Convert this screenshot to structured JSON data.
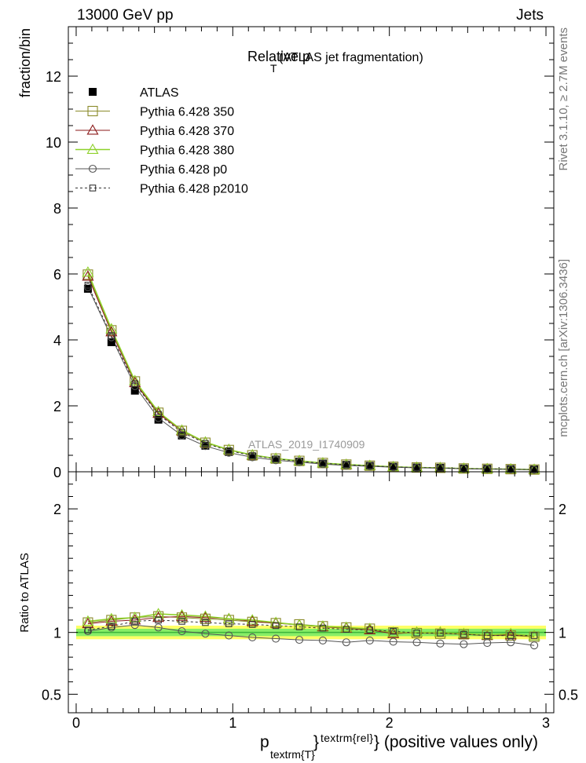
{
  "header": {
    "left": "13000 GeV pp",
    "right": "Jets"
  },
  "side": {
    "rivet": "Rivet 3.1.10, ≥ 2.7M events",
    "mcplots": "mcplots.cern.ch [arXiv:1306.3436]"
  },
  "chart_data": [
    {
      "type": "line",
      "title_main": "Relative p",
      "title_sub": "T",
      "title_rest": "(ATLAS jet fragmentation)",
      "analysis_label": "ATLAS_2019_I1740909",
      "ylabel": "fraction/bin",
      "xlim": [
        -0.05,
        3.05
      ],
      "ylim": [
        0,
        13.5
      ],
      "yticks": [
        0,
        2,
        4,
        6,
        8,
        10,
        12
      ],
      "ytick_labels": [
        "0",
        "2",
        "4",
        "6",
        "8",
        "10",
        "12"
      ],
      "x": [
        0.075,
        0.225,
        0.375,
        0.525,
        0.675,
        0.825,
        0.975,
        1.125,
        1.275,
        1.425,
        1.575,
        1.725,
        1.875,
        2.025,
        2.175,
        2.325,
        2.475,
        2.625,
        2.775,
        2.925
      ],
      "legend_placement": "top-left",
      "series": [
        {
          "name": "ATLAS",
          "marker": "filled-square",
          "color": "#000000",
          "line": "none",
          "values": [
            5.55,
            3.93,
            2.46,
            1.58,
            1.1,
            0.79,
            0.6,
            0.46,
            0.37,
            0.31,
            0.25,
            0.21,
            0.18,
            0.15,
            0.13,
            0.12,
            0.1,
            0.09,
            0.08,
            0.07
          ]
        },
        {
          "name": "Pythia 6.428 350",
          "marker": "open-square",
          "color": "#8a8a2a",
          "line": "solid",
          "values": [
            5.98,
            4.29,
            2.74,
            1.79,
            1.24,
            0.88,
            0.66,
            0.5,
            0.4,
            0.33,
            0.265,
            0.218,
            0.185,
            0.151,
            0.13,
            0.12,
            0.1,
            0.09,
            0.08,
            0.068
          ]
        },
        {
          "name": "Pythia 6.428 370",
          "marker": "open-triangle",
          "color": "#8b1a1a",
          "line": "solid",
          "values": [
            5.93,
            4.24,
            2.7,
            1.77,
            1.24,
            0.89,
            0.67,
            0.5,
            0.4,
            0.33,
            0.262,
            0.218,
            0.184,
            0.148,
            0.13,
            0.12,
            0.097,
            0.086,
            0.078,
            0.066
          ]
        },
        {
          "name": "Pythia 6.428 380",
          "marker": "open-triangle",
          "color": "#8ed12a",
          "line": "solid",
          "values": [
            6.05,
            4.33,
            2.76,
            1.82,
            1.26,
            0.9,
            0.67,
            0.51,
            0.4,
            0.33,
            0.265,
            0.219,
            0.185,
            0.149,
            0.13,
            0.12,
            0.098,
            0.087,
            0.079,
            0.067
          ]
        },
        {
          "name": "Pythia 6.428 p0",
          "marker": "open-circle",
          "color": "#555555",
          "line": "solid",
          "values": [
            5.6,
            4.08,
            2.6,
            1.63,
            1.1,
            0.78,
            0.58,
            0.44,
            0.35,
            0.29,
            0.232,
            0.19,
            0.167,
            0.138,
            0.118,
            0.109,
            0.09,
            0.082,
            0.073,
            0.062
          ]
        },
        {
          "name": "Pythia 6.428 p2010",
          "marker": "open-square-small",
          "color": "#333333",
          "line": "dashed",
          "values": [
            5.66,
            4.13,
            2.67,
            1.74,
            1.2,
            0.86,
            0.64,
            0.49,
            0.39,
            0.32,
            0.258,
            0.215,
            0.18,
            0.148,
            0.129,
            0.12,
            0.098,
            0.087,
            0.078,
            0.066
          ]
        }
      ]
    },
    {
      "type": "line",
      "ylabel": "Ratio to ATLAS",
      "xlabel_main": "p",
      "xlabel_sub": "textrm{T}",
      "xlabel_sup": "textrm{rel}",
      "xlabel_rest": "} (positive values only)",
      "xlim": [
        -0.05,
        3.05
      ],
      "ylim": [
        0.35,
        2.3
      ],
      "xticks": [
        0,
        1,
        2,
        3
      ],
      "xtick_labels": [
        "0",
        "1",
        "2",
        "3"
      ],
      "yticks": [
        0.5,
        1,
        2
      ],
      "ytick_labels": [
        "0.5",
        "1",
        "2"
      ],
      "band_colors": [
        "#ffff66",
        "#88ee66"
      ],
      "x": [
        0.075,
        0.225,
        0.375,
        0.525,
        0.675,
        0.825,
        0.975,
        1.125,
        1.275,
        1.425,
        1.575,
        1.725,
        1.875,
        2.025,
        2.175,
        2.325,
        2.475,
        2.625,
        2.775,
        2.925
      ],
      "series": [
        {
          "name": "Pythia 6.428 350",
          "values": [
            1.08,
            1.1,
            1.12,
            1.13,
            1.12,
            1.11,
            1.1,
            1.085,
            1.075,
            1.065,
            1.05,
            1.04,
            1.03,
            1.0,
            0.995,
            0.99,
            0.985,
            0.98,
            0.975,
            0.965
          ]
        },
        {
          "name": "Pythia 6.428 370",
          "values": [
            1.07,
            1.09,
            1.1,
            1.12,
            1.13,
            1.12,
            1.11,
            1.09,
            1.075,
            1.06,
            1.045,
            1.035,
            1.02,
            0.99,
            1.0,
            1.0,
            0.985,
            0.975,
            0.98,
            0.97
          ]
        },
        {
          "name": "Pythia 6.428 380",
          "values": [
            1.09,
            1.11,
            1.12,
            1.15,
            1.14,
            1.13,
            1.11,
            1.1,
            1.08,
            1.06,
            1.05,
            1.04,
            1.03,
            1.0,
            1.0,
            1.0,
            0.99,
            0.98,
            0.99,
            0.97
          ]
        },
        {
          "name": "Pythia 6.428 p0",
          "values": [
            1.01,
            1.04,
            1.06,
            1.04,
            1.01,
            0.99,
            0.975,
            0.96,
            0.95,
            0.94,
            0.935,
            0.92,
            0.935,
            0.925,
            0.92,
            0.91,
            0.905,
            0.915,
            0.92,
            0.895
          ]
        },
        {
          "name": "Pythia 6.428 p2010",
          "values": [
            1.02,
            1.05,
            1.09,
            1.1,
            1.09,
            1.08,
            1.07,
            1.065,
            1.055,
            1.045,
            1.035,
            1.025,
            1.02,
            1.01,
            0.995,
            0.995,
            0.985,
            0.975,
            0.975,
            0.975
          ]
        }
      ]
    }
  ]
}
